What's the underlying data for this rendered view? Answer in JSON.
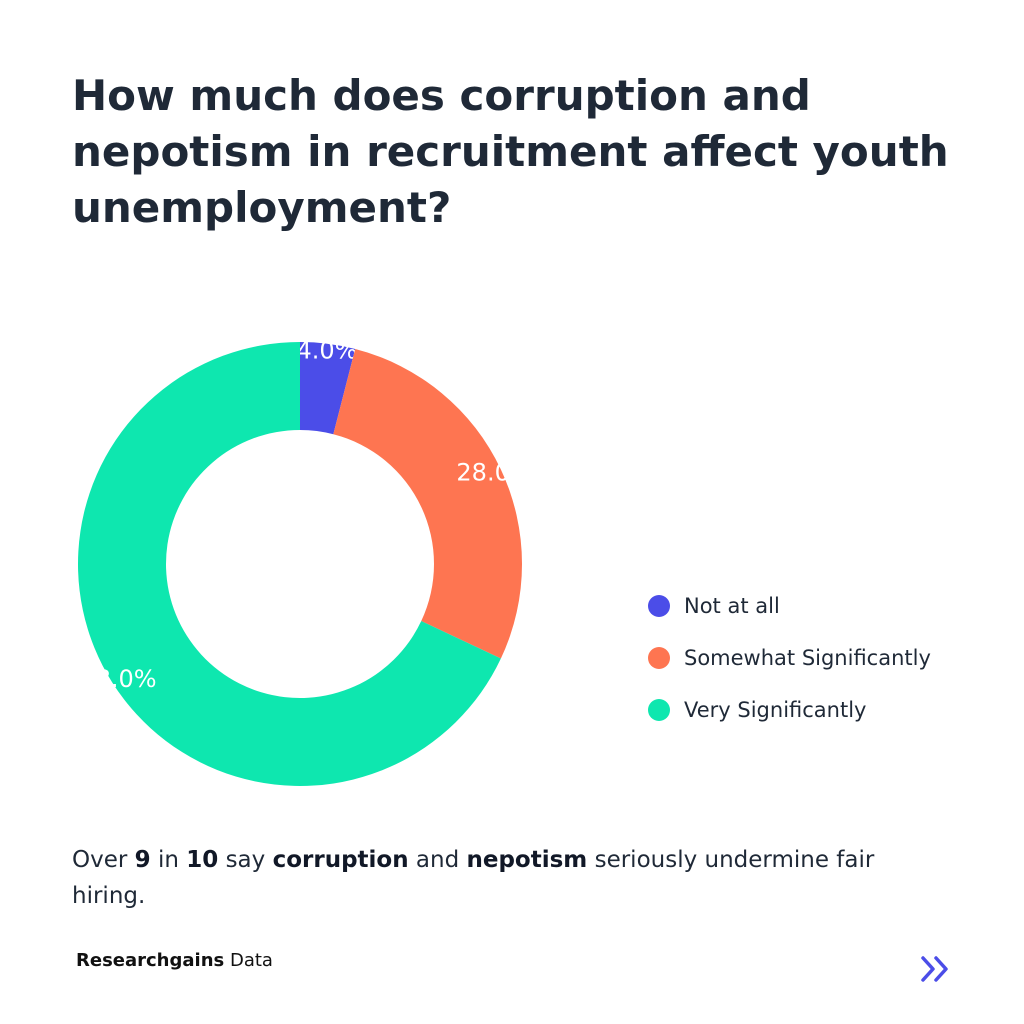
{
  "chart_data": {
    "type": "pie",
    "title": "How much does corruption and nepotism in recruitment affect youth unemployment?",
    "donut": true,
    "start_angle": "top, clockwise",
    "legend_position": "right",
    "series": [
      {
        "name": "Not at all",
        "value": 4.0,
        "label": "4.0%",
        "color": "#4b4de8"
      },
      {
        "name": "Somewhat Significantly",
        "value": 28.0,
        "label": "28.0%",
        "color": "#fe7551"
      },
      {
        "name": "Very Significantly",
        "value": 68.0,
        "label": "68.0%",
        "color": "#0ee7af"
      }
    ]
  },
  "caption": {
    "parts": [
      {
        "text": "Over ",
        "bold": false
      },
      {
        "text": "9",
        "bold": true
      },
      {
        "text": " in ",
        "bold": false
      },
      {
        "text": "10",
        "bold": true
      },
      {
        "text": " say ",
        "bold": false
      },
      {
        "text": "corruption",
        "bold": true
      },
      {
        "text": " and ",
        "bold": false
      },
      {
        "text": "nepotism",
        "bold": true
      },
      {
        "text": " seriously undermine fair hiring.",
        "bold": false
      }
    ]
  },
  "footer": {
    "brand": "Researchgains",
    "suffix": " Data",
    "next_icon": "double-chevron-right-icon",
    "accent_color": "#4b4de8"
  }
}
